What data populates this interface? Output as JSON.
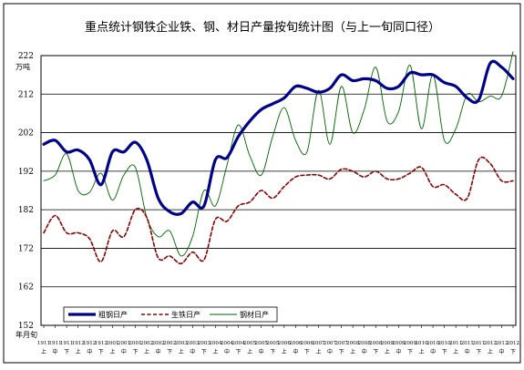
{
  "chart_data": {
    "type": "line",
    "title": "重点统计钢铁企业铁、钢、材日产量按旬统计图（与上一旬同口径）",
    "ylabel": "万吨",
    "xlabel": "年月旬",
    "ylim": [
      152,
      222
    ],
    "yticks": [
      152,
      162,
      172,
      182,
      192,
      202,
      212,
      222
    ],
    "grid": "horizontal",
    "legend_position": "bottom-left",
    "x_tick_labels": [
      {
        "period": "1911",
        "dekad": "上"
      },
      {
        "period": "1911",
        "dekad": "中"
      },
      {
        "period": "1911",
        "dekad": "下"
      },
      {
        "period": "1912",
        "dekad": "上"
      },
      {
        "period": "1912",
        "dekad": "中"
      },
      {
        "period": "1912",
        "dekad": "下"
      },
      {
        "period": "2001",
        "dekad": "上"
      },
      {
        "period": "2001",
        "dekad": "中"
      },
      {
        "period": "2001",
        "dekad": "下"
      },
      {
        "period": "2002",
        "dekad": "上"
      },
      {
        "period": "2002",
        "dekad": "中"
      },
      {
        "period": "2002",
        "dekad": "下"
      },
      {
        "period": "2003",
        "dekad": "上"
      },
      {
        "period": "2003",
        "dekad": "中"
      },
      {
        "period": "2003",
        "dekad": "下"
      },
      {
        "period": "2004",
        "dekad": "上"
      },
      {
        "period": "2004",
        "dekad": "中"
      },
      {
        "period": "2004",
        "dekad": "下"
      },
      {
        "period": "2005",
        "dekad": "上"
      },
      {
        "period": "2005",
        "dekad": "中"
      },
      {
        "period": "2005",
        "dekad": "下"
      },
      {
        "period": "2006",
        "dekad": "上"
      },
      {
        "period": "2006",
        "dekad": "中"
      },
      {
        "period": "2006",
        "dekad": "下"
      },
      {
        "period": "2007",
        "dekad": "上"
      },
      {
        "period": "2007",
        "dekad": "中"
      },
      {
        "period": "2007",
        "dekad": "下"
      },
      {
        "period": "2008",
        "dekad": "上"
      },
      {
        "period": "2008",
        "dekad": "中"
      },
      {
        "period": "2008",
        "dekad": "下"
      },
      {
        "period": "2009",
        "dekad": "上"
      },
      {
        "period": "2009",
        "dekad": "中"
      },
      {
        "period": "2009",
        "dekad": "下"
      },
      {
        "period": "2010",
        "dekad": "上"
      },
      {
        "period": "2010",
        "dekad": "中"
      },
      {
        "period": "2010",
        "dekad": "下"
      },
      {
        "period": "2011",
        "dekad": "上"
      },
      {
        "period": "2011",
        "dekad": "中"
      },
      {
        "period": "2011",
        "dekad": "下"
      },
      {
        "period": "2012",
        "dekad": "上"
      },
      {
        "period": "2012",
        "dekad": "中"
      },
      {
        "period": "2012",
        "dekad": "下"
      }
    ],
    "series": [
      {
        "name": "粗钢日产",
        "color": "#00008B",
        "style": "solid-thick",
        "values": [
          199.0,
          200.0,
          197.0,
          197.5,
          195.0,
          188.5,
          197.0,
          197.0,
          199.5,
          195.0,
          185.0,
          181.5,
          181.0,
          184.0,
          183.0,
          195.0,
          195.5,
          201.0,
          205.0,
          208.0,
          209.5,
          211.0,
          214.0,
          213.5,
          212.5,
          213.5,
          217.0,
          215.5,
          216.0,
          215.5,
          213.5,
          214.0,
          217.5,
          217.0,
          217.0,
          215.0,
          214.0,
          211.0,
          210.5,
          220.0,
          219.0,
          216.0
        ]
      },
      {
        "name": "生铁日产",
        "color": "#8B0000",
        "style": "dashed",
        "values": [
          176.0,
          180.5,
          176.0,
          176.0,
          174.5,
          168.5,
          176.5,
          175.0,
          182.0,
          180.0,
          169.5,
          170.0,
          168.0,
          171.0,
          169.0,
          179.5,
          179.0,
          183.0,
          184.0,
          187.0,
          185.0,
          188.0,
          190.5,
          191.0,
          191.0,
          190.0,
          192.5,
          192.0,
          190.5,
          192.0,
          190.0,
          190.0,
          191.5,
          193.0,
          188.0,
          188.5,
          186.0,
          185.0,
          195.0,
          194.0,
          189.5,
          189.5
        ]
      },
      {
        "name": "钢材日产",
        "color": "#006400",
        "style": "solid-thin",
        "values": [
          189.5,
          191.0,
          196.5,
          187.0,
          186.5,
          191.5,
          184.5,
          191.0,
          193.0,
          180.0,
          175.0,
          176.5,
          170.0,
          175.0,
          187.0,
          183.0,
          193.5,
          204.0,
          196.0,
          191.0,
          201.0,
          208.5,
          200.0,
          197.0,
          213.0,
          199.0,
          214.0,
          202.0,
          208.0,
          219.0,
          205.0,
          207.5,
          219.5,
          203.0,
          217.0,
          200.0,
          203.0,
          212.0,
          210.0,
          211.5,
          211.5,
          223.0
        ]
      }
    ]
  }
}
